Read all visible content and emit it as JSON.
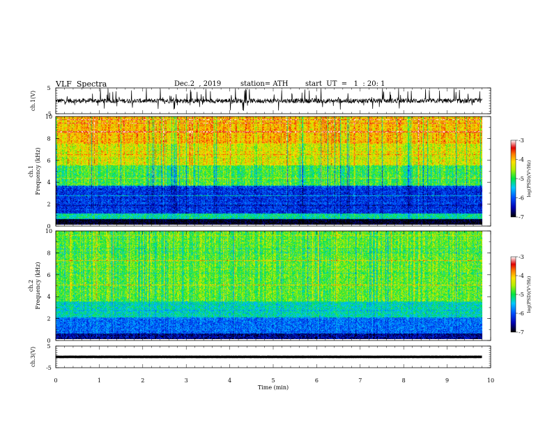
{
  "header": {
    "title": "VLF  Spectra",
    "date": "Dec.2  , 2019",
    "station": "station= ATH",
    "start": "start  UT  =   1  : 20: 1"
  },
  "chart_data": [
    {
      "panel": "ch1-waveform",
      "type": "line",
      "ylabel": "ch.1(V)",
      "ylim": [
        -5,
        5
      ],
      "yticks": [
        "5",
        "-5"
      ],
      "baseline_value": 0,
      "color": "#000000"
    },
    {
      "panel": "ch1-spectrogram",
      "type": "heatmap",
      "ylabel": "ch.1\nFrequency (kHz)",
      "ylim": [
        0,
        10
      ],
      "yticks": [
        "10",
        "8",
        "6",
        "4",
        "2",
        "0"
      ],
      "colorbar": {
        "label": "log(PSD)(V²/Hz)",
        "ticks": [
          "-3",
          "-4",
          "-5",
          "-6",
          "-7"
        ],
        "range": [
          -7,
          -3
        ]
      },
      "bands_khz_level": [
        [
          0,
          0.5,
          -7
        ],
        [
          0.5,
          1.0,
          -5.2
        ],
        [
          1.0,
          3.6,
          -6.2
        ],
        [
          3.6,
          5.5,
          -4.9
        ],
        [
          5.5,
          7.5,
          -4.3
        ],
        [
          7.5,
          10,
          -4.0
        ]
      ]
    },
    {
      "panel": "ch2-spectrogram",
      "type": "heatmap",
      "ylabel": "ch.2\nFrequency (kHz)",
      "ylim": [
        0,
        10
      ],
      "yticks": [
        "10",
        "8",
        "6",
        "4",
        "2",
        "0"
      ],
      "colorbar": {
        "label": "log(PSD)(V²/Hz)",
        "ticks": [
          "-3",
          "-4",
          "-5",
          "-6",
          "-7"
        ],
        "range": [
          -7,
          -3
        ]
      },
      "bands_khz_level": [
        [
          0,
          0.5,
          -6.6
        ],
        [
          0.5,
          2.0,
          -5.9
        ],
        [
          2.0,
          3.5,
          -5.3
        ],
        [
          3.5,
          10,
          -4.8
        ]
      ]
    },
    {
      "panel": "ch3-waveform",
      "type": "line",
      "ylabel": "ch.3(V)",
      "ylim": [
        -5,
        5
      ],
      "yticks": [
        "5",
        "-5"
      ],
      "baseline_value": 0,
      "color": "#000000"
    }
  ],
  "xaxis": {
    "label": "Time  (min)",
    "xlim": [
      0,
      10
    ],
    "data_end": 9.8,
    "ticks": [
      "0",
      "1",
      "2",
      "3",
      "4",
      "5",
      "6",
      "7",
      "8",
      "9",
      "10"
    ]
  }
}
